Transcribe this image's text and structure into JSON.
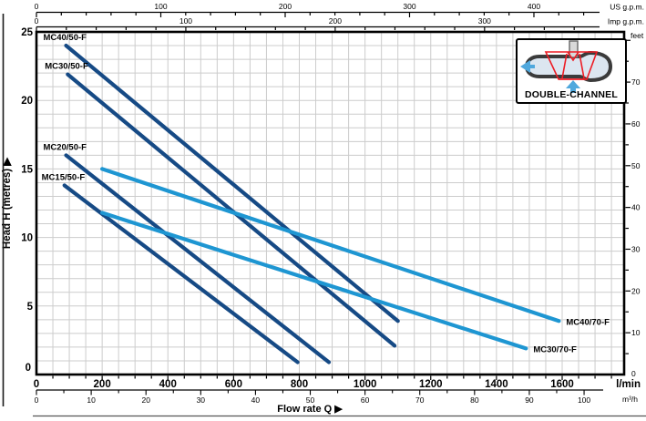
{
  "chart_data": {
    "type": "line",
    "title": "",
    "xlabel": "Flow rate Q  ▶",
    "ylabel": "Head H (metres)  ▶",
    "grid": {
      "on": true,
      "x_step_lmin": 50,
      "y_step_m": 1
    },
    "xlim_lmin": [
      0,
      1780
    ],
    "ylim_m": [
      0,
      25
    ],
    "x_axis_lmin": {
      "unit": "l/min",
      "major_ticks": [
        0,
        200,
        400,
        600,
        800,
        1000,
        1200,
        1400,
        1600
      ],
      "minor_step": 50
    },
    "x_axis_m3h": {
      "unit": "m³/h",
      "major_ticks": [
        0,
        10,
        20,
        30,
        40,
        50,
        60,
        70,
        80,
        90,
        100
      ],
      "minor_step": 5,
      "lmin_per_unit": 16.6667
    },
    "x_axis_us_gpm": {
      "unit": "US g.p.m.",
      "major_ticks": [
        0,
        100,
        200,
        300,
        400
      ],
      "minor_step": 20,
      "lmin_per_unit": 3.785
    },
    "x_axis_imp_gpm": {
      "unit": "Imp g.p.m.",
      "major_ticks": [
        0,
        100,
        200,
        300
      ],
      "minor_step": 20,
      "lmin_per_unit": 4.546
    },
    "y_axis_m": {
      "unit": "metres",
      "major_ticks": [
        25,
        20,
        15,
        10,
        5,
        0
      ]
    },
    "y_axis_feet": {
      "unit": "feet",
      "major_ticks": [
        0,
        10,
        20,
        30,
        40,
        50,
        60,
        70
      ],
      "minor_step": 5,
      "m_per_unit": 0.3048
    },
    "series": [
      {
        "name": "MC40/50-F",
        "color_key": "dark_blue",
        "label_anchor": "start",
        "points": [
          [
            90,
            24
          ],
          [
            1100,
            3.9
          ]
        ]
      },
      {
        "name": "MC30/50-F",
        "color_key": "dark_blue",
        "label_anchor": "start",
        "points": [
          [
            95,
            21.9
          ],
          [
            1090,
            2.1
          ]
        ]
      },
      {
        "name": "MC20/50-F",
        "color_key": "dark_blue",
        "label_anchor": "start",
        "points": [
          [
            90,
            16
          ],
          [
            890,
            0.9
          ]
        ]
      },
      {
        "name": "MC15/50-F",
        "color_key": "dark_blue",
        "label_anchor": "start",
        "points": [
          [
            85,
            13.8
          ],
          [
            795,
            0.9
          ]
        ]
      },
      {
        "name": "MC40/70-F",
        "color_key": "light_blue",
        "label_anchor": "end",
        "points": [
          [
            200,
            15
          ],
          [
            1590,
            3.9
          ]
        ]
      },
      {
        "name": "MC30/70-F",
        "color_key": "light_blue",
        "label_anchor": "end",
        "points": [
          [
            200,
            11.8
          ],
          [
            1490,
            1.9
          ]
        ]
      }
    ],
    "colors": {
      "dark_blue": "#164a85",
      "light_blue": "#1e96d2",
      "grid": "#cccccc",
      "axis": "#000000",
      "text": "#000000"
    }
  },
  "badge": {
    "label": "DOUBLE-CHANNEL",
    "impeller_color": "#ed1c24",
    "arrow_color": "#4fa8dd",
    "casing_fill": "#dce6f0",
    "casing_stroke": "#3b3b3b",
    "shaft_fill": "#d9d9d9"
  }
}
